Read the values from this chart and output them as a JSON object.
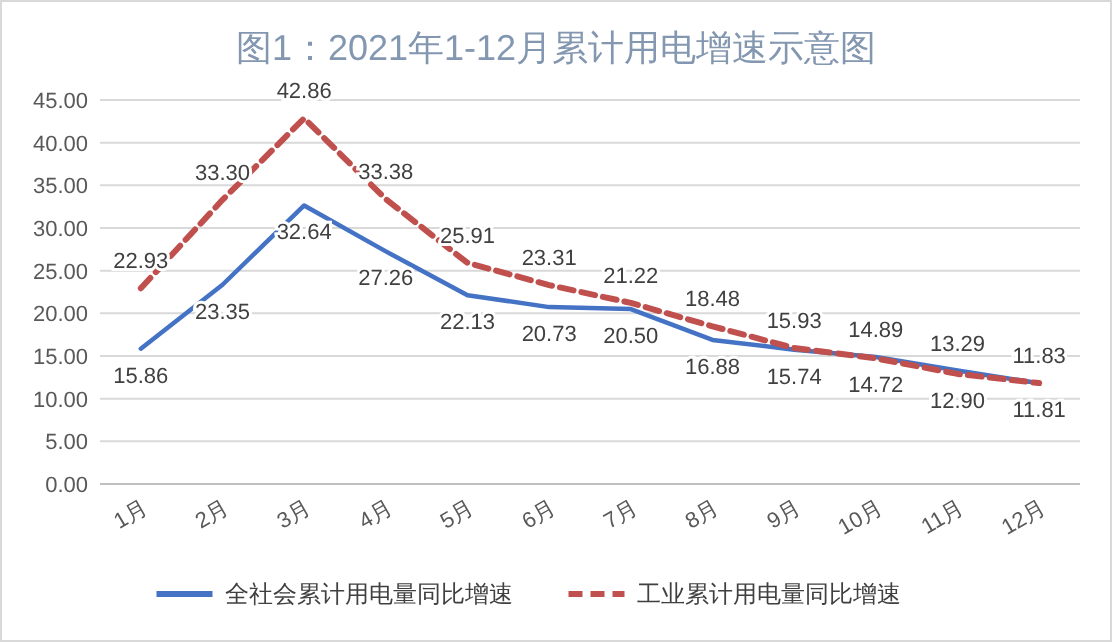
{
  "chart_data": {
    "type": "line",
    "title": "图1：2021年1-12月累计用电增速示意图",
    "categories": [
      "1月",
      "2月",
      "3月",
      "4月",
      "5月",
      "6月",
      "7月",
      "8月",
      "9月",
      "10月",
      "11月",
      "12月"
    ],
    "series": [
      {
        "name": "全社会累计用电量同比增速",
        "color": "#4472c4",
        "line_style": "solid",
        "values": [
          15.86,
          23.35,
          32.64,
          27.26,
          22.13,
          20.73,
          20.5,
          16.88,
          15.74,
          14.89,
          13.29,
          11.81
        ],
        "value_labels": [
          "15.86",
          "23.35",
          "32.64",
          "27.26",
          "22.13",
          "20.73",
          "20.50",
          "16.88",
          "15.74",
          "14.89",
          "13.29",
          "11.81"
        ]
      },
      {
        "name": "工业累计用电量同比增速",
        "color": "#c0504d",
        "line_style": "dashed",
        "values": [
          22.93,
          33.3,
          42.86,
          33.38,
          25.91,
          23.31,
          21.22,
          18.48,
          15.93,
          14.72,
          12.9,
          11.83
        ],
        "value_labels": [
          "22.93",
          "33.30",
          "42.86",
          "33.38",
          "25.91",
          "23.31",
          "21.22",
          "18.48",
          "15.93",
          "14.72",
          "12.90",
          "11.83"
        ]
      }
    ],
    "ylim": [
      0,
      45
    ],
    "yticks": [
      {
        "value": 0,
        "label": "0.00"
      },
      {
        "value": 5,
        "label": "5.00"
      },
      {
        "value": 10,
        "label": "10.00"
      },
      {
        "value": 15,
        "label": "15.00"
      },
      {
        "value": 20,
        "label": "20.00"
      },
      {
        "value": 25,
        "label": "25.00"
      },
      {
        "value": 30,
        "label": "30.00"
      },
      {
        "value": 35,
        "label": "35.00"
      },
      {
        "value": 40,
        "label": "40.00"
      },
      {
        "value": 45,
        "label": "45.00"
      }
    ],
    "grid": "y",
    "legend": "bottom",
    "marker": "none"
  }
}
